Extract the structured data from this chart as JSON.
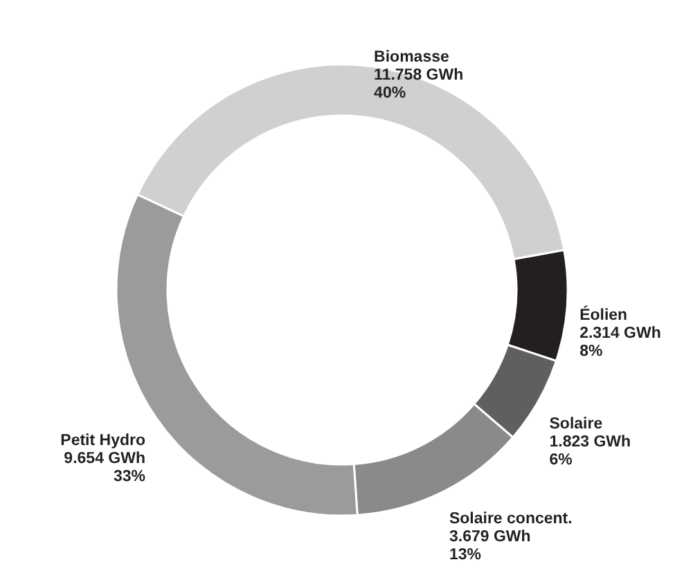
{
  "chart_data": {
    "type": "donut",
    "categories": [
      "Biomasse",
      "Éolien",
      "Solaire",
      "Solaire concent.",
      "Petit Hydro"
    ],
    "values": [
      11758,
      2314,
      1823,
      3679,
      9654
    ],
    "value_labels": [
      "11.758 GWh\n40%",
      "2.314 GWh\n8%",
      "1.823 GWh\n6%",
      "3.679 GWh\n13%",
      "9.654 GWh\n33%"
    ],
    "colors": [
      "#d0d0d0",
      "#231f20",
      "#5f5f5f",
      "#8a8a8a",
      "#9b9b9b"
    ]
  }
}
